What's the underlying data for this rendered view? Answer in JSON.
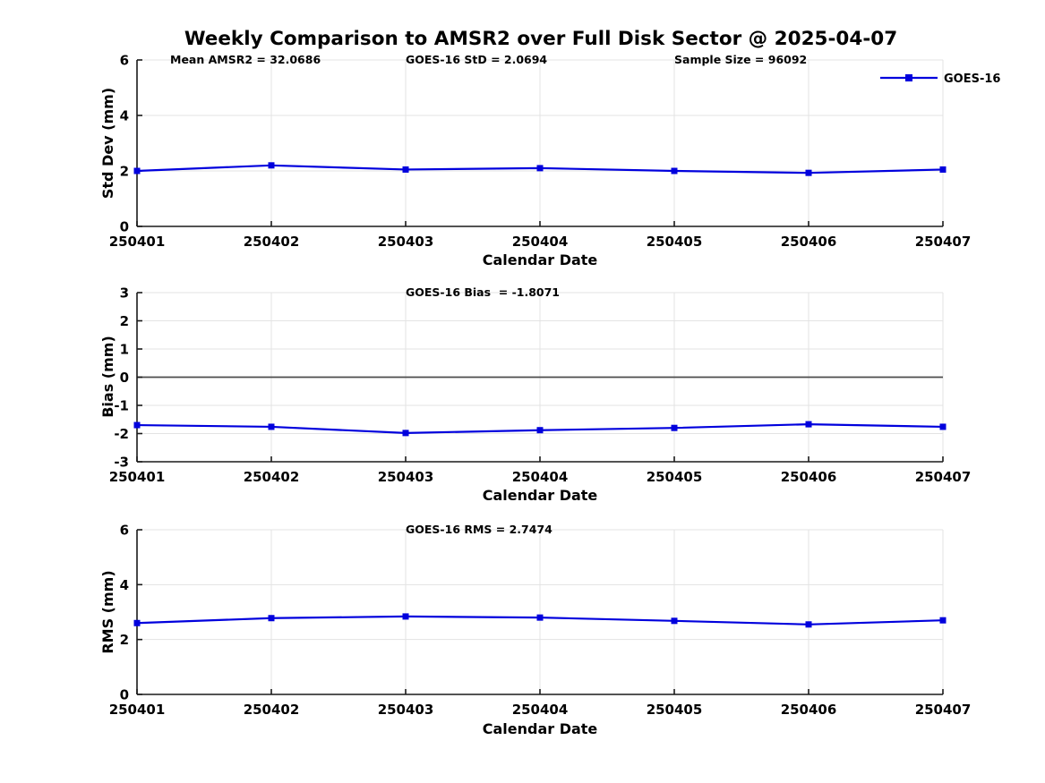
{
  "title": "Weekly Comparison to AMSR2 over Full Disk Sector @ 2025-04-07",
  "legend": {
    "label": "GOES-16",
    "color": "#0000dd",
    "marker": "square"
  },
  "colors": {
    "series_blue": "#0000dd",
    "grid": "#e3e3e3",
    "axis": "#1a1a1a",
    "zero_line": "#4d4d4d"
  },
  "chart_data": [
    {
      "type": "line",
      "name": "std-dev",
      "ylabel": "Std Dev (mm)",
      "xlabel": "Calendar Date",
      "ylim": [
        0,
        6
      ],
      "yticks": [
        0,
        2,
        4,
        6
      ],
      "grid": "on",
      "categories": [
        "250401",
        "250402",
        "250403",
        "250404",
        "250405",
        "250406",
        "250407"
      ],
      "annotations": [
        "Mean AMSR2 = 32.0686",
        "GOES-16 StD = 2.0694",
        "Sample Size = 96092"
      ],
      "zero_line": false,
      "series": [
        {
          "name": "GOES-16",
          "color": "#0000dd",
          "marker": "square",
          "values": [
            2.0,
            2.2,
            2.05,
            2.1,
            2.0,
            1.93,
            2.05
          ]
        }
      ]
    },
    {
      "type": "line",
      "name": "bias",
      "ylabel": "Bias (mm)",
      "xlabel": "Calendar Date",
      "ylim": [
        -3,
        3
      ],
      "yticks": [
        -3,
        -2,
        -1,
        0,
        1,
        2,
        3
      ],
      "grid": "on",
      "categories": [
        "250401",
        "250402",
        "250403",
        "250404",
        "250405",
        "250406",
        "250407"
      ],
      "annotations": [
        "GOES-16 Bias  = -1.8071"
      ],
      "zero_line": true,
      "series": [
        {
          "name": "GOES-16",
          "color": "#0000dd",
          "marker": "square",
          "values": [
            -1.7,
            -1.76,
            -1.98,
            -1.88,
            -1.8,
            -1.67,
            -1.76
          ]
        }
      ]
    },
    {
      "type": "line",
      "name": "rms",
      "ylabel": "RMS (mm)",
      "xlabel": "Calendar Date",
      "ylim": [
        0,
        6
      ],
      "yticks": [
        0,
        2,
        4,
        6
      ],
      "grid": "on",
      "categories": [
        "250401",
        "250402",
        "250403",
        "250404",
        "250405",
        "250406",
        "250407"
      ],
      "annotations": [
        "GOES-16 RMS = 2.7474"
      ],
      "zero_line": false,
      "series": [
        {
          "name": "GOES-16",
          "color": "#0000dd",
          "marker": "square",
          "values": [
            2.6,
            2.78,
            2.84,
            2.8,
            2.68,
            2.55,
            2.7
          ]
        }
      ]
    }
  ]
}
